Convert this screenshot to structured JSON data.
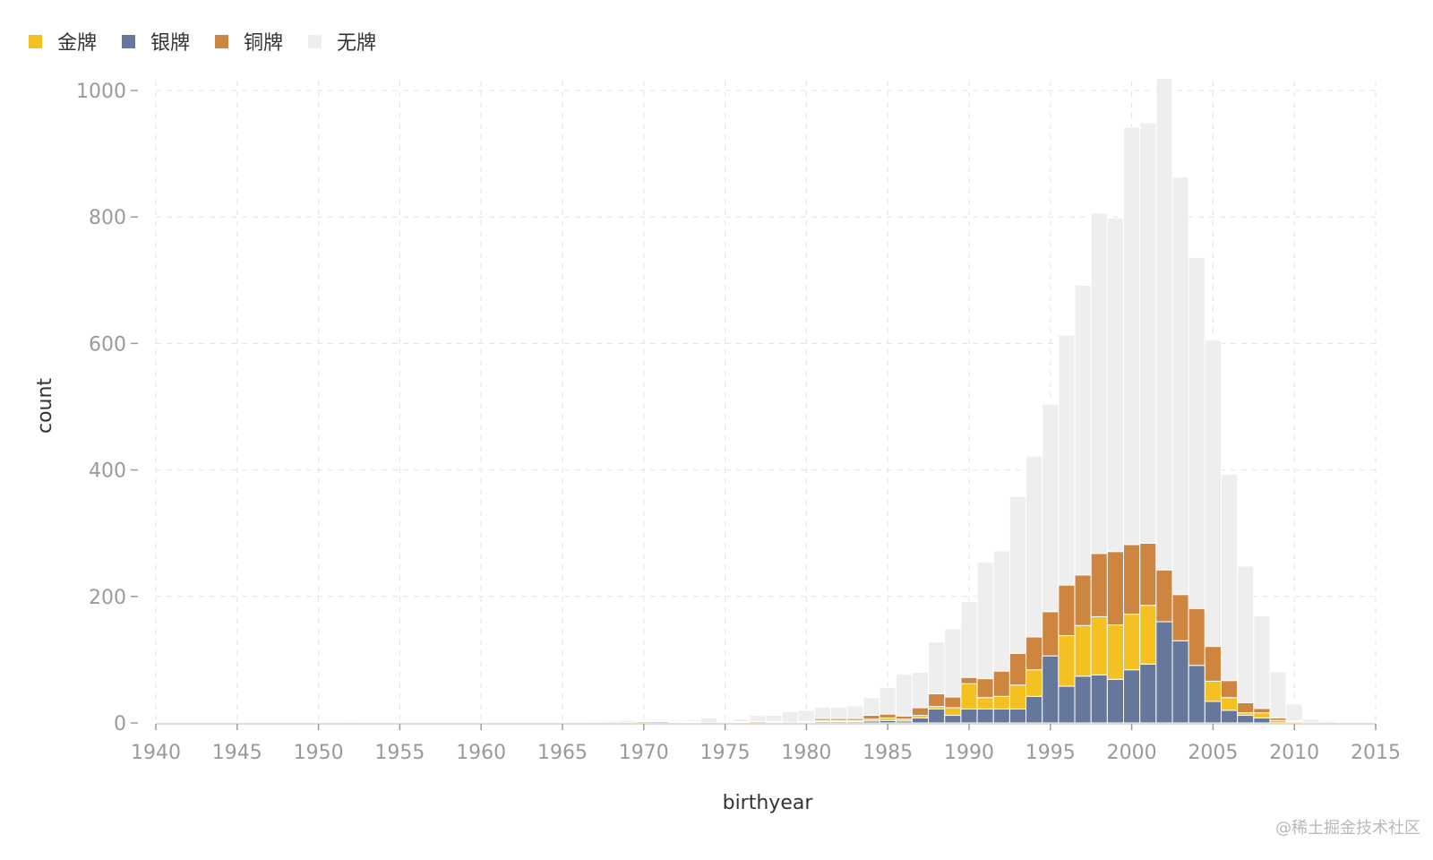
{
  "chart_data": {
    "type": "bar",
    "stacked": true,
    "xlabel": "birthyear",
    "ylabel": "count",
    "xlim": [
      1940,
      2015
    ],
    "ylim": [
      0,
      1020
    ],
    "x_ticks": [
      1940,
      1945,
      1950,
      1955,
      1960,
      1965,
      1970,
      1975,
      1980,
      1985,
      1990,
      1995,
      2000,
      2005,
      2010,
      2015
    ],
    "y_ticks": [
      0,
      200,
      400,
      600,
      800,
      1000
    ],
    "grid": true,
    "legend_position": "top-left",
    "x": [
      1947,
      1950,
      1951,
      1952,
      1953,
      1954,
      1956,
      1957,
      1958,
      1959,
      1960,
      1961,
      1962,
      1963,
      1964,
      1965,
      1966,
      1967,
      1968,
      1969,
      1970,
      1971,
      1972,
      1973,
      1974,
      1975,
      1976,
      1977,
      1978,
      1979,
      1980,
      1981,
      1982,
      1983,
      1984,
      1985,
      1986,
      1987,
      1988,
      1989,
      1990,
      1991,
      1992,
      1993,
      1994,
      1995,
      1996,
      1997,
      1998,
      1999,
      2000,
      2001,
      2002,
      2003,
      2004,
      2005,
      2006,
      2007,
      2008,
      2009,
      2010,
      2011,
      2012
    ],
    "series": [
      {
        "name": "银牌",
        "color": "#65789b",
        "values": [
          0,
          0,
          0,
          0,
          0,
          0,
          0,
          0,
          0,
          1,
          1,
          1,
          0,
          0,
          0,
          1,
          0,
          0,
          0,
          0,
          0,
          2,
          1,
          1,
          0,
          1,
          1,
          0,
          0,
          0,
          1,
          2,
          2,
          2,
          3,
          4,
          3,
          8,
          22,
          12,
          22,
          22,
          22,
          22,
          42,
          106,
          58,
          74,
          76,
          69,
          84,
          93,
          160,
          130,
          91,
          34,
          20,
          12,
          8,
          0,
          0,
          0,
          0
        ]
      },
      {
        "name": "金牌",
        "color": "#f4c022",
        "values": [
          1,
          0,
          0,
          0,
          0,
          0,
          0,
          0,
          0,
          0,
          0,
          0,
          0,
          0,
          1,
          1,
          1,
          0,
          0,
          0,
          0,
          1,
          1,
          0,
          0,
          0,
          0,
          0,
          1,
          0,
          0,
          2,
          2,
          2,
          3,
          4,
          3,
          4,
          4,
          12,
          40,
          18,
          20,
          38,
          42,
          0,
          80,
          80,
          92,
          86,
          88,
          93,
          0,
          0,
          0,
          32,
          20,
          4,
          8,
          4,
          2,
          0,
          0
        ]
      },
      {
        "name": "铜牌",
        "color": "#cd853f",
        "values": [
          0,
          0,
          0,
          0,
          0,
          0,
          0,
          0,
          0,
          0,
          0,
          0,
          0,
          0,
          0,
          1,
          1,
          0,
          0,
          0,
          2,
          1,
          1,
          1,
          0,
          1,
          1,
          2,
          1,
          0,
          1,
          3,
          3,
          3,
          6,
          6,
          5,
          12,
          20,
          17,
          10,
          30,
          40,
          50,
          52,
          70,
          80,
          80,
          100,
          116,
          110,
          98,
          82,
          73,
          90,
          55,
          27,
          16,
          7,
          4,
          1,
          0,
          0
        ]
      },
      {
        "name": "无牌",
        "color": "#eeeeee",
        "values": [
          1,
          1,
          1,
          2,
          1,
          1,
          1,
          1,
          1,
          0,
          0,
          0,
          1,
          1,
          0,
          0,
          1,
          2,
          3,
          4,
          2,
          2,
          2,
          3,
          8,
          2,
          4,
          10,
          10,
          18,
          18,
          18,
          18,
          20,
          28,
          42,
          66,
          56,
          82,
          108,
          120,
          184,
          190,
          248,
          286,
          328,
          395,
          458,
          538,
          527,
          660,
          665,
          777,
          660,
          555,
          484,
          326,
          216,
          146,
          73,
          27,
          6,
          3
        ]
      }
    ]
  },
  "legend": {
    "items": [
      {
        "label": "金牌",
        "color": "#f4c022"
      },
      {
        "label": "银牌",
        "color": "#65789b"
      },
      {
        "label": "铜牌",
        "color": "#cd853f"
      },
      {
        "label": "无牌",
        "color": "#eeeeee"
      }
    ]
  },
  "watermark": "@稀土掘金技术社区"
}
